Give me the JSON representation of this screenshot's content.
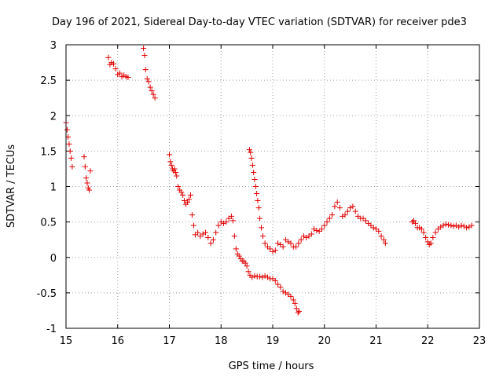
{
  "chart_data": {
    "type": "scatter",
    "title": "Day 196 of 2021, Sidereal Day-to-day VTEC variation (SDTVAR) for receiver pde3",
    "xlabel": "GPS time / hours",
    "ylabel": "SDTVAR / TECUs",
    "xlim": [
      15,
      23
    ],
    "ylim": [
      -1,
      3
    ],
    "xticks": [
      15,
      16,
      17,
      18,
      19,
      20,
      21,
      22,
      23
    ],
    "yticks": [
      -1,
      -0.5,
      0,
      0.5,
      1,
      1.5,
      2,
      2.5,
      3
    ],
    "xtick_labels": [
      "15",
      "16",
      "17",
      "18",
      "19",
      "20",
      "21",
      "22",
      "23"
    ],
    "ytick_labels": [
      "-1",
      "-0.5",
      "0",
      "0.5",
      "1",
      "1.5",
      "2",
      "2.5",
      "3"
    ],
    "grid": true,
    "marker": "+",
    "color": "#e00000",
    "series": [
      {
        "name": "seg1",
        "points": [
          [
            15.0,
            1.9
          ],
          [
            15.02,
            1.8
          ],
          [
            15.04,
            1.7
          ],
          [
            15.06,
            1.6
          ],
          [
            15.08,
            1.5
          ],
          [
            15.1,
            1.4
          ],
          [
            15.12,
            1.28
          ]
        ]
      },
      {
        "name": "seg2",
        "points": [
          [
            15.35,
            1.42
          ],
          [
            15.37,
            1.28
          ],
          [
            15.39,
            1.12
          ],
          [
            15.41,
            1.05
          ],
          [
            15.43,
            0.98
          ],
          [
            15.45,
            0.95
          ],
          [
            15.47,
            1.22
          ]
        ]
      },
      {
        "name": "seg3",
        "points": [
          [
            15.82,
            2.82
          ],
          [
            15.85,
            2.72
          ],
          [
            15.88,
            2.75
          ],
          [
            15.92,
            2.73
          ],
          [
            15.96,
            2.66
          ],
          [
            16.0,
            2.58
          ],
          [
            16.04,
            2.6
          ],
          [
            16.08,
            2.55
          ],
          [
            16.12,
            2.57
          ],
          [
            16.16,
            2.55
          ],
          [
            16.2,
            2.54
          ]
        ]
      },
      {
        "name": "seg4",
        "points": [
          [
            16.5,
            2.95
          ],
          [
            16.52,
            2.85
          ],
          [
            16.54,
            2.65
          ],
          [
            16.57,
            2.52
          ],
          [
            16.6,
            2.48
          ],
          [
            16.63,
            2.4
          ],
          [
            16.66,
            2.35
          ],
          [
            16.69,
            2.3
          ],
          [
            16.72,
            2.25
          ]
        ]
      },
      {
        "name": "seg5",
        "points": [
          [
            17.0,
            1.45
          ],
          [
            17.02,
            1.35
          ],
          [
            17.04,
            1.3
          ],
          [
            17.06,
            1.25
          ],
          [
            17.08,
            1.22
          ],
          [
            17.1,
            1.25
          ],
          [
            17.12,
            1.2
          ],
          [
            17.14,
            1.15
          ],
          [
            17.17,
            1.0
          ],
          [
            17.2,
            0.95
          ],
          [
            17.23,
            0.92
          ],
          [
            17.26,
            0.88
          ],
          [
            17.29,
            0.8
          ],
          [
            17.32,
            0.75
          ],
          [
            17.35,
            0.78
          ],
          [
            17.38,
            0.82
          ],
          [
            17.41,
            0.88
          ],
          [
            17.44,
            0.6
          ],
          [
            17.47,
            0.45
          ],
          [
            17.5,
            0.32
          ],
          [
            17.55,
            0.35
          ],
          [
            17.6,
            0.3
          ],
          [
            17.65,
            0.33
          ],
          [
            17.7,
            0.35
          ],
          [
            17.75,
            0.28
          ],
          [
            17.8,
            0.2
          ],
          [
            17.85,
            0.25
          ],
          [
            17.9,
            0.35
          ],
          [
            17.95,
            0.45
          ],
          [
            18.0,
            0.5
          ],
          [
            18.05,
            0.48
          ],
          [
            18.1,
            0.5
          ],
          [
            18.15,
            0.55
          ],
          [
            18.2,
            0.58
          ],
          [
            18.23,
            0.52
          ],
          [
            18.26,
            0.3
          ],
          [
            18.29,
            0.12
          ],
          [
            18.32,
            0.05
          ],
          [
            18.35,
            0.02
          ],
          [
            18.38,
            -0.02
          ],
          [
            18.41,
            -0.05
          ],
          [
            18.44,
            -0.05
          ],
          [
            18.47,
            -0.08
          ],
          [
            18.5,
            -0.12
          ],
          [
            18.53,
            -0.2
          ],
          [
            18.56,
            -0.25
          ],
          [
            18.6,
            -0.28
          ],
          [
            18.65,
            -0.26
          ],
          [
            18.7,
            -0.27
          ],
          [
            18.75,
            -0.27
          ],
          [
            18.8,
            -0.28
          ],
          [
            18.85,
            -0.26
          ],
          [
            18.9,
            -0.28
          ],
          [
            18.95,
            -0.3
          ],
          [
            19.0,
            -0.3
          ],
          [
            19.05,
            -0.33
          ],
          [
            19.1,
            -0.38
          ],
          [
            19.15,
            -0.42
          ],
          [
            19.2,
            -0.48
          ],
          [
            19.25,
            -0.5
          ],
          [
            19.3,
            -0.52
          ],
          [
            19.35,
            -0.55
          ],
          [
            19.4,
            -0.6
          ],
          [
            19.43,
            -0.65
          ],
          [
            19.46,
            -0.72
          ],
          [
            19.49,
            -0.78
          ],
          [
            19.51,
            -0.76
          ]
        ]
      },
      {
        "name": "seg6",
        "points": [
          [
            18.55,
            1.52
          ],
          [
            18.57,
            1.48
          ],
          [
            18.59,
            1.4
          ],
          [
            18.61,
            1.3
          ],
          [
            18.63,
            1.2
          ],
          [
            18.65,
            1.1
          ],
          [
            18.67,
            1.0
          ],
          [
            18.69,
            0.9
          ],
          [
            18.71,
            0.8
          ],
          [
            18.73,
            0.7
          ],
          [
            18.75,
            0.55
          ],
          [
            18.78,
            0.42
          ],
          [
            18.81,
            0.3
          ],
          [
            18.85,
            0.2
          ],
          [
            18.9,
            0.15
          ],
          [
            18.95,
            0.12
          ],
          [
            19.0,
            0.08
          ],
          [
            19.05,
            0.1
          ],
          [
            19.1,
            0.2
          ],
          [
            19.15,
            0.18
          ],
          [
            19.2,
            0.15
          ],
          [
            19.25,
            0.25
          ],
          [
            19.3,
            0.22
          ],
          [
            19.35,
            0.2
          ],
          [
            19.4,
            0.15
          ],
          [
            19.45,
            0.15
          ],
          [
            19.5,
            0.2
          ],
          [
            19.55,
            0.25
          ],
          [
            19.6,
            0.3
          ],
          [
            19.65,
            0.28
          ],
          [
            19.7,
            0.3
          ],
          [
            19.75,
            0.33
          ],
          [
            19.8,
            0.4
          ],
          [
            19.85,
            0.38
          ],
          [
            19.9,
            0.37
          ],
          [
            19.95,
            0.4
          ],
          [
            20.0,
            0.45
          ],
          [
            20.05,
            0.5
          ],
          [
            20.1,
            0.55
          ],
          [
            20.15,
            0.6
          ],
          [
            20.2,
            0.72
          ],
          [
            20.25,
            0.78
          ],
          [
            20.3,
            0.7
          ],
          [
            20.35,
            0.58
          ],
          [
            20.4,
            0.6
          ],
          [
            20.45,
            0.65
          ],
          [
            20.5,
            0.7
          ],
          [
            20.55,
            0.72
          ],
          [
            20.6,
            0.65
          ],
          [
            20.65,
            0.58
          ],
          [
            20.7,
            0.55
          ],
          [
            20.75,
            0.55
          ],
          [
            20.8,
            0.52
          ],
          [
            20.85,
            0.48
          ],
          [
            20.9,
            0.45
          ],
          [
            20.95,
            0.42
          ],
          [
            21.0,
            0.4
          ],
          [
            21.05,
            0.37
          ],
          [
            21.1,
            0.3
          ],
          [
            21.15,
            0.25
          ],
          [
            21.18,
            0.2
          ]
        ]
      },
      {
        "name": "seg7",
        "points": [
          [
            21.7,
            0.5
          ],
          [
            21.73,
            0.52
          ],
          [
            21.76,
            0.48
          ],
          [
            21.8,
            0.42
          ],
          [
            21.84,
            0.42
          ],
          [
            21.88,
            0.4
          ],
          [
            21.92,
            0.35
          ],
          [
            21.96,
            0.28
          ],
          [
            22.0,
            0.22
          ],
          [
            22.03,
            0.18
          ],
          [
            22.06,
            0.2
          ],
          [
            22.1,
            0.28
          ],
          [
            22.15,
            0.35
          ],
          [
            22.2,
            0.4
          ],
          [
            22.25,
            0.43
          ],
          [
            22.3,
            0.45
          ],
          [
            22.35,
            0.47
          ],
          [
            22.4,
            0.46
          ],
          [
            22.45,
            0.45
          ],
          [
            22.5,
            0.44
          ],
          [
            22.55,
            0.45
          ],
          [
            22.6,
            0.43
          ],
          [
            22.65,
            0.45
          ],
          [
            22.7,
            0.44
          ],
          [
            22.75,
            0.42
          ],
          [
            22.8,
            0.43
          ],
          [
            22.85,
            0.45
          ]
        ]
      }
    ]
  }
}
